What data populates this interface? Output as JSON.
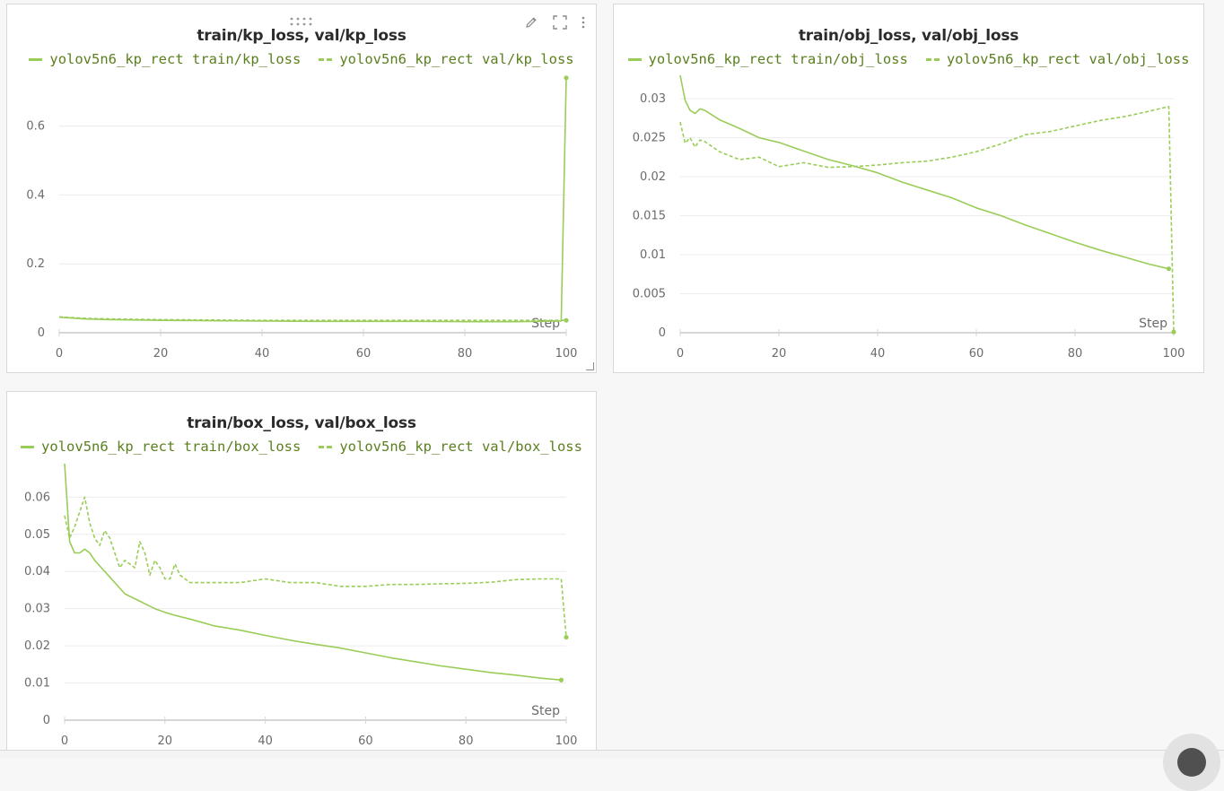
{
  "panels": [
    {
      "title": "train/kp_loss, val/kp_loss",
      "legend": [
        {
          "label": "yolov5n6_kp_rect train/kp_loss",
          "style": "solid"
        },
        {
          "label": "yolov5n6_kp_rect val/kp_loss",
          "style": "dashed"
        }
      ],
      "x_axis_label": "Step",
      "toolbar": {
        "edit": "pencil-icon",
        "fullscreen": "expand-icon",
        "menu": "more-vertical-icon"
      }
    },
    {
      "title": "train/obj_loss, val/obj_loss",
      "legend": [
        {
          "label": "yolov5n6_kp_rect train/obj_loss",
          "style": "solid"
        },
        {
          "label": "yolov5n6_kp_rect val/obj_loss",
          "style": "dashed"
        }
      ],
      "x_axis_label": "Step"
    },
    {
      "title": "train/box_loss, val/box_loss",
      "legend": [
        {
          "label": "yolov5n6_kp_rect train/box_loss",
          "style": "solid"
        },
        {
          "label": "yolov5n6_kp_rect val/box_loss",
          "style": "dashed"
        }
      ],
      "x_axis_label": "Step"
    }
  ],
  "colors": {
    "series": "#9acd58",
    "legend_text": "#5a7f1e",
    "grid": "#ececec"
  },
  "chart_data": [
    {
      "type": "line",
      "title": "train/kp_loss, val/kp_loss",
      "xlabel": "Step",
      "ylabel": "",
      "xlim": [
        0,
        100
      ],
      "ylim": [
        0,
        0.75
      ],
      "xticks": [
        0,
        20,
        40,
        60,
        80,
        100
      ],
      "yticks": [
        0,
        0.2,
        0.4,
        0.6
      ],
      "ytick_labels": [
        "0",
        "0.2",
        "0.4",
        "0.6"
      ],
      "grid": true,
      "legend_position": "top",
      "series": [
        {
          "name": "yolov5n6_kp_rect train/kp_loss",
          "style": "solid",
          "x": [
            0,
            5,
            10,
            20,
            30,
            40,
            50,
            60,
            70,
            80,
            90,
            99,
            100
          ],
          "y": [
            0.045,
            0.04,
            0.038,
            0.036,
            0.035,
            0.034,
            0.033,
            0.033,
            0.033,
            0.032,
            0.032,
            0.034,
            0.74
          ]
        },
        {
          "name": "yolov5n6_kp_rect val/kp_loss",
          "style": "dashed",
          "x": [
            0,
            5,
            10,
            20,
            30,
            40,
            50,
            60,
            70,
            80,
            90,
            99,
            100
          ],
          "y": [
            0.046,
            0.042,
            0.04,
            0.038,
            0.037,
            0.036,
            0.036,
            0.036,
            0.036,
            0.036,
            0.036,
            0.036,
            0.036
          ]
        }
      ]
    },
    {
      "type": "line",
      "title": "train/obj_loss, val/obj_loss",
      "xlabel": "Step",
      "ylabel": "",
      "xlim": [
        0,
        100
      ],
      "ylim": [
        0,
        0.033
      ],
      "xticks": [
        0,
        20,
        40,
        60,
        80,
        100
      ],
      "yticks": [
        0,
        0.005,
        0.01,
        0.015,
        0.02,
        0.025,
        0.03
      ],
      "ytick_labels": [
        "0",
        "0.005",
        "0.01",
        "0.015",
        "0.02",
        "0.025",
        "0.03"
      ],
      "grid": true,
      "legend_position": "top",
      "series": [
        {
          "name": "yolov5n6_kp_rect train/obj_loss",
          "style": "solid",
          "x": [
            0,
            1,
            2,
            3,
            4,
            5,
            8,
            12,
            16,
            20,
            25,
            30,
            35,
            40,
            45,
            50,
            55,
            60,
            65,
            70,
            75,
            80,
            85,
            90,
            95,
            99
          ],
          "y": [
            0.033,
            0.0298,
            0.0285,
            0.0281,
            0.0287,
            0.0285,
            0.0273,
            0.0262,
            0.025,
            0.0244,
            0.0233,
            0.0222,
            0.0214,
            0.0205,
            0.0193,
            0.0183,
            0.0173,
            0.016,
            0.015,
            0.0138,
            0.0127,
            0.0116,
            0.0106,
            0.0097,
            0.0088,
            0.0082
          ]
        },
        {
          "name": "yolov5n6_kp_rect val/obj_loss",
          "style": "dashed",
          "x": [
            0,
            1,
            2,
            3,
            4,
            5,
            8,
            12,
            16,
            20,
            25,
            30,
            35,
            40,
            45,
            50,
            55,
            60,
            65,
            70,
            75,
            80,
            85,
            90,
            95,
            99,
            100
          ],
          "y": [
            0.027,
            0.0243,
            0.025,
            0.0238,
            0.0247,
            0.0245,
            0.0232,
            0.0222,
            0.0225,
            0.0213,
            0.0218,
            0.0212,
            0.0213,
            0.0215,
            0.0218,
            0.022,
            0.0225,
            0.0232,
            0.0242,
            0.0254,
            0.0258,
            0.0265,
            0.0272,
            0.0277,
            0.0284,
            0.029,
            0.0001
          ]
        }
      ]
    },
    {
      "type": "line",
      "title": "train/box_loss, val/box_loss",
      "xlabel": "Step",
      "ylabel": "",
      "xlim": [
        0,
        100
      ],
      "ylim": [
        0,
        0.069
      ],
      "xticks": [
        0,
        20,
        40,
        60,
        80,
        100
      ],
      "yticks": [
        0,
        0.01,
        0.02,
        0.03,
        0.04,
        0.05,
        0.06
      ],
      "ytick_labels": [
        "0",
        "0.01",
        "0.02",
        "0.03",
        "0.04",
        "0.05",
        "0.06"
      ],
      "grid": true,
      "legend_position": "top",
      "series": [
        {
          "name": "yolov5n6_kp_rect train/box_loss",
          "style": "solid",
          "x": [
            0,
            1,
            2,
            3,
            4,
            5,
            6,
            8,
            10,
            12,
            15,
            18,
            20,
            22,
            25,
            30,
            35,
            40,
            45,
            50,
            55,
            60,
            65,
            70,
            75,
            80,
            85,
            90,
            95,
            99
          ],
          "y": [
            0.069,
            0.048,
            0.045,
            0.045,
            0.046,
            0.045,
            0.043,
            0.04,
            0.037,
            0.034,
            0.032,
            0.03,
            0.029,
            0.0282,
            0.0272,
            0.0253,
            0.0242,
            0.0228,
            0.0215,
            0.0204,
            0.0194,
            0.0181,
            0.0168,
            0.0157,
            0.0146,
            0.0137,
            0.0128,
            0.0121,
            0.0113,
            0.0108
          ]
        },
        {
          "name": "yolov5n6_kp_rect val/box_loss",
          "style": "dashed",
          "x": [
            0,
            1,
            2,
            3,
            4,
            5,
            6,
            7,
            8,
            9,
            10,
            11,
            12,
            13,
            14,
            15,
            16,
            17,
            18,
            19,
            20,
            21,
            22,
            23,
            25,
            30,
            35,
            40,
            45,
            50,
            55,
            60,
            65,
            70,
            75,
            80,
            85,
            90,
            95,
            99,
            100
          ],
          "y": [
            0.055,
            0.049,
            0.052,
            0.056,
            0.06,
            0.053,
            0.049,
            0.047,
            0.051,
            0.049,
            0.045,
            0.041,
            0.043,
            0.042,
            0.041,
            0.048,
            0.045,
            0.039,
            0.043,
            0.041,
            0.038,
            0.038,
            0.042,
            0.039,
            0.037,
            0.037,
            0.037,
            0.038,
            0.037,
            0.037,
            0.036,
            0.036,
            0.0365,
            0.0365,
            0.0367,
            0.0368,
            0.0371,
            0.0378,
            0.038,
            0.038,
            0.0223
          ]
        }
      ]
    }
  ]
}
